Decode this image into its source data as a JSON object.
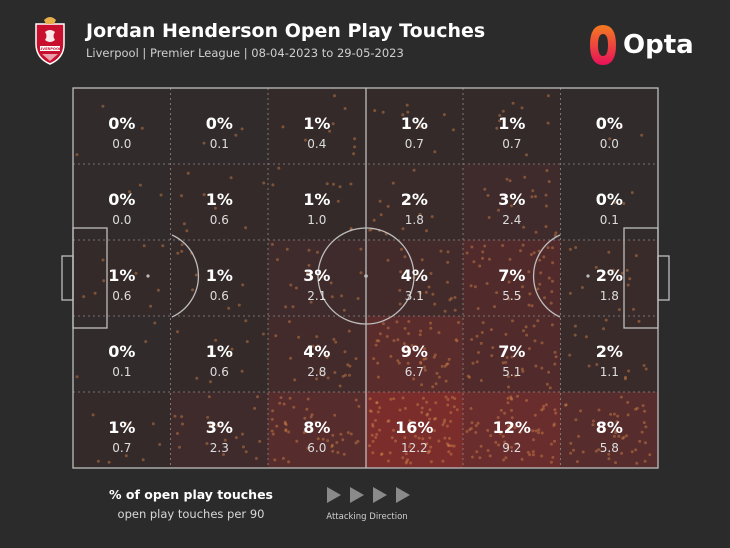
{
  "header": {
    "title": "Jordan Henderson Open Play Touches",
    "subtitle": "Liverpool | Premier League | 08-04-2023 to 29-05-2023",
    "crest_text": "LIVERPOOL",
    "brand": "Opta"
  },
  "legend": {
    "title": "% of open play touches",
    "subtitle": "open play touches per 90",
    "direction_label": "Attacking Direction"
  },
  "colors": {
    "background": "#2b2b2b",
    "pitch_lines": "#bdbdbd",
    "heat": "#c0302f",
    "dots": "#d4864a",
    "crest_red": "#c8102e",
    "brand_orange": "#f47b20",
    "brand_pink": "#e8115b"
  },
  "chart_data": {
    "type": "heatmap",
    "rows": 5,
    "cols": 6,
    "percent_labels": [
      [
        "0%",
        "0%",
        "1%",
        "1%",
        "1%",
        "0%"
      ],
      [
        "0%",
        "1%",
        "1%",
        "2%",
        "3%",
        "0%"
      ],
      [
        "1%",
        "1%",
        "3%",
        "4%",
        "7%",
        "2%"
      ],
      [
        "0%",
        "1%",
        "4%",
        "9%",
        "7%",
        "2%"
      ],
      [
        "1%",
        "3%",
        "8%",
        "16%",
        "12%",
        "8%"
      ]
    ],
    "per90_labels": [
      [
        "0.0",
        "0.1",
        "0.4",
        "0.7",
        "0.7",
        "0.0"
      ],
      [
        "0.0",
        "0.6",
        "1.0",
        "1.8",
        "2.4",
        "0.1"
      ],
      [
        "0.6",
        "0.6",
        "2.1",
        "3.1",
        "5.5",
        "1.8"
      ],
      [
        "0.1",
        "0.6",
        "2.8",
        "6.7",
        "5.1",
        "1.1"
      ],
      [
        "0.7",
        "2.3",
        "6.0",
        "12.2",
        "9.2",
        "5.8"
      ]
    ],
    "percent_values": [
      [
        0,
        0,
        1,
        1,
        1,
        0
      ],
      [
        0,
        1,
        1,
        2,
        3,
        0
      ],
      [
        1,
        1,
        3,
        4,
        7,
        2
      ],
      [
        0,
        1,
        4,
        9,
        7,
        2
      ],
      [
        1,
        3,
        8,
        16,
        12,
        8
      ]
    ],
    "attacking_direction": "left-to-right"
  }
}
